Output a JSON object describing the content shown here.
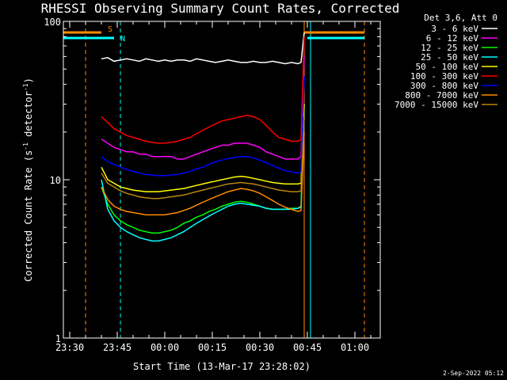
{
  "chart_data": {
    "type": "line",
    "title": "RHESSI Observing Summary Count Rates, Corrected",
    "xlabel": "Start Time (13-Mar-17 23:28:02)",
    "ylabel": "Corrected Count Rate (s⁻¹ detector⁻¹)",
    "ylabel_main": "Corrected Count Rate (s",
    "ylabel_sup1": "-1",
    "ylabel_mid": " detector",
    "ylabel_sup2": "-1",
    "ylabel_end": ")",
    "y_scale": "log",
    "ylim": [
      1,
      100
    ],
    "yticks": [
      1,
      10,
      100
    ],
    "ytick_labels": [
      "1",
      "10",
      "100"
    ],
    "xlim": [
      "23:28",
      "01:08"
    ],
    "xticks": [
      "23:30",
      "23:45",
      "00:00",
      "00:15",
      "00:30",
      "00:45",
      "01:00"
    ],
    "legend_header": "Det 3,6, Att 0",
    "legend_position": "right",
    "footer": "2-Sep-2022 05:12",
    "series": [
      {
        "name": "3 - 6 keV",
        "color": "#000000",
        "x": [
          "23:40",
          "23:42",
          "23:44",
          "23:46",
          "23:48",
          "23:50",
          "23:52",
          "23:54",
          "23:56",
          "23:58",
          "00:00",
          "00:02",
          "00:04",
          "00:06",
          "00:08",
          "00:10",
          "00:12",
          "00:14",
          "00:16",
          "00:18",
          "00:20",
          "00:22",
          "00:24",
          "00:26",
          "00:28",
          "00:30",
          "00:32",
          "00:34",
          "00:36",
          "00:38",
          "00:40",
          "00:42",
          "00:43",
          "00:44"
        ],
        "y": [
          58,
          59,
          56,
          57,
          58,
          57,
          56,
          58,
          57,
          56,
          57,
          56,
          57,
          57,
          56,
          58,
          57,
          56,
          55,
          56,
          57,
          56,
          55,
          55,
          56,
          55,
          55,
          56,
          55,
          54,
          55,
          54,
          55,
          85
        ]
      },
      {
        "name": "6 - 12 keV",
        "color": "#ff00ff",
        "x": [
          "23:40",
          "23:42",
          "23:44",
          "23:46",
          "23:48",
          "23:50",
          "23:52",
          "23:54",
          "23:56",
          "23:58",
          "00:00",
          "00:02",
          "00:04",
          "00:06",
          "00:08",
          "00:10",
          "00:12",
          "00:14",
          "00:16",
          "00:18",
          "00:20",
          "00:22",
          "00:24",
          "00:26",
          "00:28",
          "00:30",
          "00:32",
          "00:34",
          "00:36",
          "00:38",
          "00:40",
          "00:42",
          "00:43",
          "00:44"
        ],
        "y": [
          18,
          17,
          16,
          15.5,
          15,
          15,
          14.5,
          14.5,
          14,
          14,
          14,
          14,
          13.5,
          13.5,
          14,
          14.5,
          15,
          15.5,
          16,
          16.5,
          16.5,
          17,
          17,
          17,
          16.5,
          16,
          15,
          14.5,
          14,
          13.5,
          13.5,
          13.5,
          14,
          60
        ]
      },
      {
        "name": "12 - 25 keV",
        "color": "#00ff00",
        "x": [
          "23:40",
          "23:42",
          "23:44",
          "23:46",
          "23:48",
          "23:50",
          "23:52",
          "23:54",
          "23:56",
          "23:58",
          "00:00",
          "00:02",
          "00:04",
          "00:06",
          "00:08",
          "00:10",
          "00:12",
          "00:14",
          "00:16",
          "00:18",
          "00:20",
          "00:22",
          "00:24",
          "00:26",
          "00:28",
          "00:30",
          "00:32",
          "00:34",
          "00:36",
          "00:38",
          "00:40",
          "00:42",
          "00:43",
          "00:44"
        ],
        "y": [
          9,
          7,
          6,
          5.5,
          5.2,
          5,
          4.8,
          4.7,
          4.6,
          4.6,
          4.7,
          4.8,
          5,
          5.3,
          5.5,
          5.8,
          6,
          6.3,
          6.5,
          6.8,
          7,
          7.2,
          7.3,
          7.2,
          7,
          6.8,
          6.6,
          6.5,
          6.5,
          6.5,
          6.6,
          6.6,
          6.8,
          30
        ]
      },
      {
        "name": "25 - 50 keV",
        "color": "#00ffff",
        "x": [
          "23:40",
          "23:42",
          "23:44",
          "23:46",
          "23:48",
          "23:50",
          "23:52",
          "23:54",
          "23:56",
          "23:58",
          "00:00",
          "00:02",
          "00:04",
          "00:06",
          "00:08",
          "00:10",
          "00:12",
          "00:14",
          "00:16",
          "00:18",
          "00:20",
          "00:22",
          "00:24",
          "00:26",
          "00:28",
          "00:30",
          "00:32",
          "00:34",
          "00:36",
          "00:38",
          "00:40",
          "00:42",
          "00:43",
          "00:44"
        ],
        "y": [
          10,
          6.5,
          5.5,
          5,
          4.7,
          4.5,
          4.3,
          4.2,
          4.1,
          4.1,
          4.2,
          4.3,
          4.5,
          4.7,
          5,
          5.3,
          5.6,
          5.9,
          6.2,
          6.5,
          6.8,
          7,
          7.1,
          7,
          6.9,
          6.8,
          6.6,
          6.5,
          6.5,
          6.5,
          6.5,
          6.6,
          6.7,
          25
        ]
      },
      {
        "name": "50 - 100 keV",
        "color": "#ffff00",
        "x": [
          "23:40",
          "23:42",
          "23:44",
          "23:46",
          "23:48",
          "23:50",
          "23:52",
          "23:54",
          "23:56",
          "23:58",
          "00:00",
          "00:02",
          "00:04",
          "00:06",
          "00:08",
          "00:10",
          "00:12",
          "00:14",
          "00:16",
          "00:18",
          "00:20",
          "00:22",
          "00:24",
          "00:26",
          "00:28",
          "00:30",
          "00:32",
          "00:34",
          "00:36",
          "00:38",
          "00:40",
          "00:42",
          "00:43",
          "00:44"
        ],
        "y": [
          12,
          10,
          9.5,
          9,
          8.8,
          8.6,
          8.5,
          8.4,
          8.4,
          8.4,
          8.5,
          8.6,
          8.7,
          8.8,
          9,
          9.2,
          9.4,
          9.6,
          9.8,
          10,
          10.2,
          10.4,
          10.5,
          10.4,
          10.2,
          10,
          9.8,
          9.6,
          9.5,
          9.4,
          9.4,
          9.4,
          9.5,
          30
        ]
      },
      {
        "name": "100 - 300 keV",
        "color": "#ff0000",
        "x": [
          "23:40",
          "23:42",
          "23:44",
          "23:46",
          "23:48",
          "23:50",
          "23:52",
          "23:54",
          "23:56",
          "23:58",
          "00:00",
          "00:02",
          "00:04",
          "00:06",
          "00:08",
          "00:10",
          "00:12",
          "00:14",
          "00:16",
          "00:18",
          "00:20",
          "00:22",
          "00:24",
          "00:26",
          "00:28",
          "00:30",
          "00:32",
          "00:34",
          "00:36",
          "00:38",
          "00:40",
          "00:42",
          "00:43",
          "00:44"
        ],
        "y": [
          25,
          23,
          21,
          20,
          19,
          18.5,
          18,
          17.5,
          17.2,
          17,
          17,
          17.2,
          17.5,
          18,
          18.5,
          19.5,
          20.5,
          21.5,
          22.5,
          23.5,
          24,
          24.5,
          25,
          25.5,
          25,
          24,
          22,
          20,
          18.5,
          18,
          17.5,
          17.5,
          18,
          80
        ]
      },
      {
        "name": "300 - 800 keV",
        "color": "#0000ff",
        "x": [
          "23:40",
          "23:42",
          "23:44",
          "23:46",
          "23:48",
          "23:50",
          "23:52",
          "23:54",
          "23:56",
          "23:58",
          "00:00",
          "00:02",
          "00:04",
          "00:06",
          "00:08",
          "00:10",
          "00:12",
          "00:14",
          "00:16",
          "00:18",
          "00:20",
          "00:22",
          "00:24",
          "00:26",
          "00:28",
          "00:30",
          "00:32",
          "00:34",
          "00:36",
          "00:38",
          "00:40",
          "00:42",
          "00:43",
          "00:44"
        ],
        "y": [
          14,
          13,
          12.5,
          12,
          11.6,
          11.3,
          11,
          10.8,
          10.7,
          10.6,
          10.6,
          10.7,
          10.8,
          11,
          11.3,
          11.7,
          12,
          12.5,
          13,
          13.3,
          13.6,
          13.8,
          14,
          14,
          13.7,
          13.3,
          12.8,
          12.3,
          11.8,
          11.4,
          11.2,
          11,
          11.2,
          45
        ]
      },
      {
        "name": "800 - 7000 keV",
        "color": "#ff8c00",
        "x": [
          "23:40",
          "23:42",
          "23:44",
          "23:46",
          "23:48",
          "23:50",
          "23:52",
          "23:54",
          "23:56",
          "23:58",
          "00:00",
          "00:02",
          "00:04",
          "00:06",
          "00:08",
          "00:10",
          "00:12",
          "00:14",
          "00:16",
          "00:18",
          "00:20",
          "00:22",
          "00:24",
          "00:26",
          "00:28",
          "00:30",
          "00:32",
          "00:34",
          "00:36",
          "00:38",
          "00:40",
          "00:42",
          "00:43",
          "00:44"
        ],
        "y": [
          9,
          7.5,
          6.8,
          6.5,
          6.3,
          6.2,
          6.1,
          6,
          6,
          6,
          6,
          6.1,
          6.2,
          6.4,
          6.6,
          6.9,
          7.2,
          7.5,
          7.8,
          8.1,
          8.4,
          8.6,
          8.8,
          8.7,
          8.5,
          8.2,
          7.8,
          7.4,
          7,
          6.7,
          6.5,
          6.3,
          6.4,
          20
        ]
      },
      {
        "name": "7000 - 15000 keV",
        "color": "#b8860b",
        "x": [
          "23:40",
          "23:42",
          "23:44",
          "23:46",
          "23:48",
          "23:50",
          "23:52",
          "23:54",
          "23:56",
          "23:58",
          "00:00",
          "00:02",
          "00:04",
          "00:06",
          "00:08",
          "00:10",
          "00:12",
          "00:14",
          "00:16",
          "00:18",
          "00:20",
          "00:22",
          "00:24",
          "00:26",
          "00:28",
          "00:30",
          "00:32",
          "00:34",
          "00:36",
          "00:38",
          "00:40",
          "00:42",
          "00:43",
          "00:44"
        ],
        "y": [
          11,
          9.5,
          9,
          8.5,
          8.2,
          8,
          7.8,
          7.7,
          7.6,
          7.6,
          7.7,
          7.8,
          7.9,
          8,
          8.2,
          8.4,
          8.6,
          8.8,
          9,
          9.2,
          9.4,
          9.5,
          9.6,
          9.5,
          9.4,
          9.2,
          9,
          8.8,
          8.6,
          8.5,
          8.4,
          8.4,
          8.5,
          25
        ]
      }
    ],
    "flag_bars": [
      {
        "label": "S",
        "color": "#ff8c00",
        "start": "23:28",
        "end": "23:40"
      },
      {
        "label": "N",
        "color": "#00ffff",
        "start": "23:28",
        "end": "23:44"
      },
      {
        "label": "",
        "color": "#ff8c00",
        "start": "00:44",
        "end": "01:03"
      },
      {
        "label": "",
        "color": "#00ffff",
        "start": "00:45",
        "end": "01:03"
      }
    ],
    "vertical_markers": [
      {
        "x": "23:28",
        "color": "#00ffff",
        "style": "solid"
      },
      {
        "x": "23:35",
        "color": "#ff8c00",
        "style": "dashed"
      },
      {
        "x": "23:46",
        "color": "#00ffff",
        "style": "dashed"
      },
      {
        "x": "00:44",
        "color": "#ff8c00",
        "style": "solid"
      },
      {
        "x": "00:46",
        "color": "#00ffff",
        "style": "solid"
      },
      {
        "x": "01:03",
        "color": "#ff8c00",
        "style": "dashed"
      }
    ]
  }
}
